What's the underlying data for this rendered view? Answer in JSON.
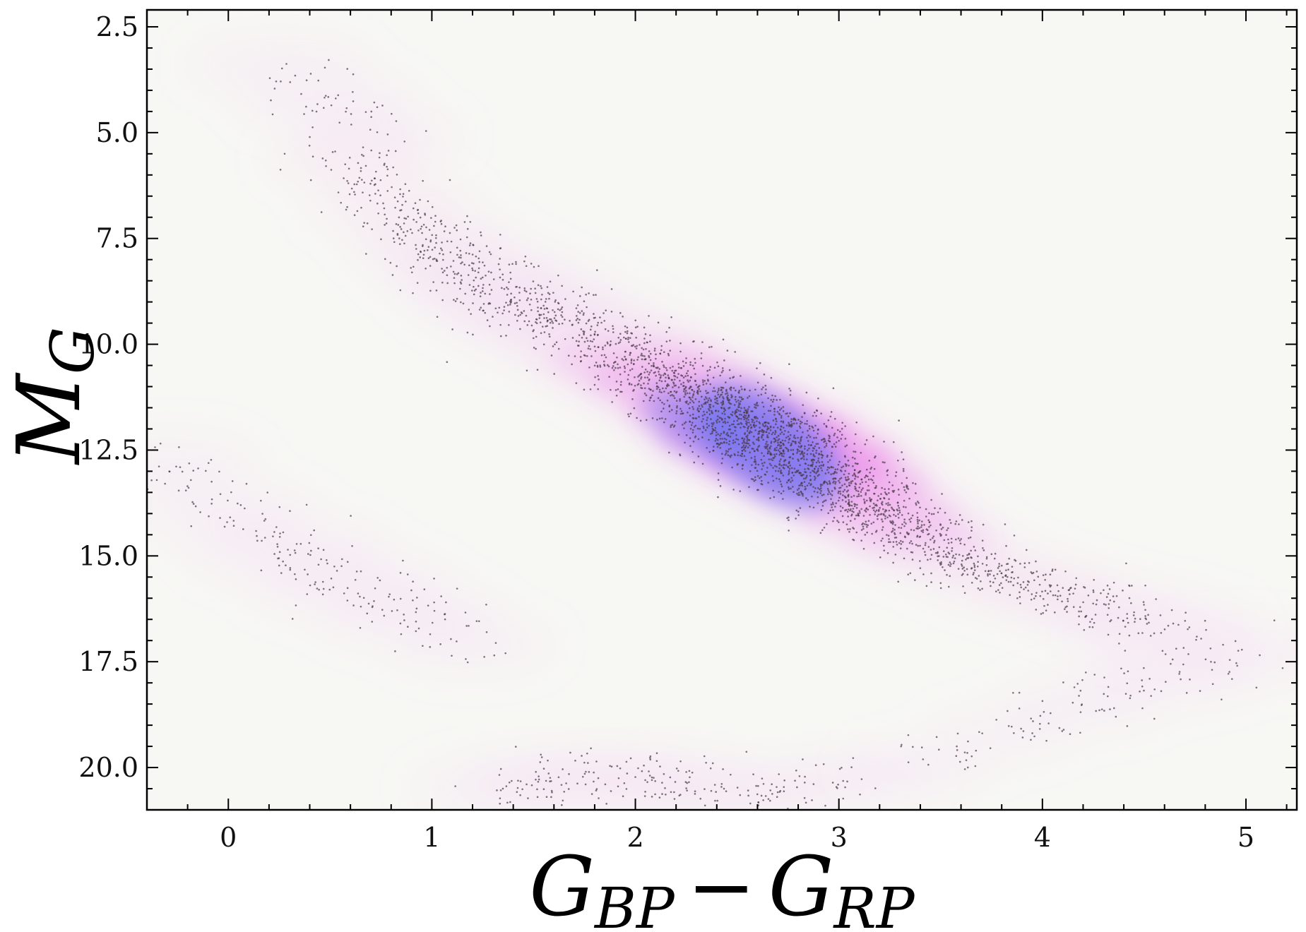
{
  "chart_data": {
    "type": "scatter",
    "title": "",
    "xlabel": {
      "base": "G",
      "sub1": "BP",
      "minus": "−",
      "base2": "G",
      "sub2": "RP"
    },
    "ylabel": {
      "base": "M",
      "sub": "G"
    },
    "xlim": [
      -0.4,
      5.25
    ],
    "ylim": [
      21.0,
      2.1
    ],
    "y_inverted": true,
    "grid": false,
    "legend": "none",
    "x_ticks": [
      {
        "value": 0,
        "label": "0"
      },
      {
        "value": 1,
        "label": "1"
      },
      {
        "value": 2,
        "label": "2"
      },
      {
        "value": 3,
        "label": "3"
      },
      {
        "value": 4,
        "label": "4"
      },
      {
        "value": 5,
        "label": "5"
      }
    ],
    "y_ticks": [
      {
        "value": 2.5,
        "label": "2.5"
      },
      {
        "value": 5.0,
        "label": "5.0"
      },
      {
        "value": 7.5,
        "label": "7.5"
      },
      {
        "value": 10.0,
        "label": "10.0"
      },
      {
        "value": 12.5,
        "label": "12.5"
      },
      {
        "value": 15.0,
        "label": "15.0"
      },
      {
        "value": 17.5,
        "label": "17.5"
      },
      {
        "value": 20.0,
        "label": "20.0"
      }
    ],
    "colors": {
      "background": "#f7f7f4",
      "density_low": "#f2c6f0",
      "density_mid": "#e96ae6",
      "density_high": "#6a73f0",
      "points": "#4a3a4a"
    },
    "series": [
      {
        "kind": "main_sequence",
        "x": [
          0.6,
          0.8,
          1.0,
          1.2,
          1.4,
          1.6,
          1.8,
          2.0,
          2.2,
          2.4,
          2.6,
          2.8,
          3.0,
          3.2,
          3.4,
          3.6,
          3.8,
          4.0,
          4.2,
          4.4,
          4.6
        ],
        "y": [
          5.6,
          6.7,
          7.6,
          8.3,
          8.9,
          9.4,
          9.9,
          10.4,
          10.9,
          11.5,
          12.1,
          12.7,
          13.3,
          14.0,
          14.6,
          15.1,
          15.5,
          15.8,
          16.1,
          16.4,
          16.7
        ],
        "spread": [
          0.45,
          0.45,
          0.45,
          0.5,
          0.55,
          0.55,
          0.55,
          0.55,
          0.55,
          0.55,
          0.6,
          0.6,
          0.55,
          0.5,
          0.45,
          0.4,
          0.4,
          0.4,
          0.4,
          0.45,
          0.5
        ],
        "weight": [
          0.4,
          0.6,
          0.7,
          0.7,
          0.7,
          0.7,
          0.8,
          1.0,
          1.4,
          2.2,
          3.0,
          2.8,
          2.0,
          1.3,
          0.9,
          0.7,
          0.5,
          0.4,
          0.3,
          0.3,
          0.3
        ],
        "density_peak": {
          "x": 2.65,
          "y": 12.4
        }
      },
      {
        "kind": "upper_branch",
        "x": [
          0.25,
          0.5,
          0.75
        ],
        "y": [
          3.4,
          4.3,
          5.1
        ],
        "spread": [
          0.5,
          0.5,
          0.45
        ],
        "weight": [
          0.15,
          0.2,
          0.25
        ]
      },
      {
        "kind": "white_dwarf_sequence",
        "x": [
          -0.3,
          0.0,
          0.3,
          0.6,
          0.9,
          1.2
        ],
        "y": [
          12.8,
          14.0,
          14.9,
          15.7,
          16.4,
          17.1
        ],
        "spread": [
          0.5,
          0.5,
          0.55,
          0.55,
          0.5,
          0.45
        ],
        "weight": [
          0.25,
          0.3,
          0.3,
          0.3,
          0.3,
          0.25
        ]
      },
      {
        "kind": "lower_clump",
        "x": [
          1.3,
          1.6,
          1.9,
          2.2,
          2.5,
          2.8,
          3.1
        ],
        "y": [
          20.5,
          20.3,
          20.2,
          20.4,
          20.6,
          20.5,
          20.2
        ],
        "spread": [
          0.45,
          0.5,
          0.5,
          0.5,
          0.45,
          0.4,
          0.4
        ],
        "weight": [
          0.25,
          0.3,
          0.3,
          0.3,
          0.25,
          0.2,
          0.2
        ]
      },
      {
        "kind": "faint_red_branch",
        "x": [
          3.4,
          3.8,
          4.2,
          4.6,
          5.0
        ],
        "y": [
          20.0,
          19.2,
          18.5,
          17.8,
          17.3
        ],
        "spread": [
          0.4,
          0.4,
          0.45,
          0.5,
          0.5
        ],
        "weight": [
          0.15,
          0.2,
          0.25,
          0.3,
          0.3
        ]
      }
    ]
  }
}
